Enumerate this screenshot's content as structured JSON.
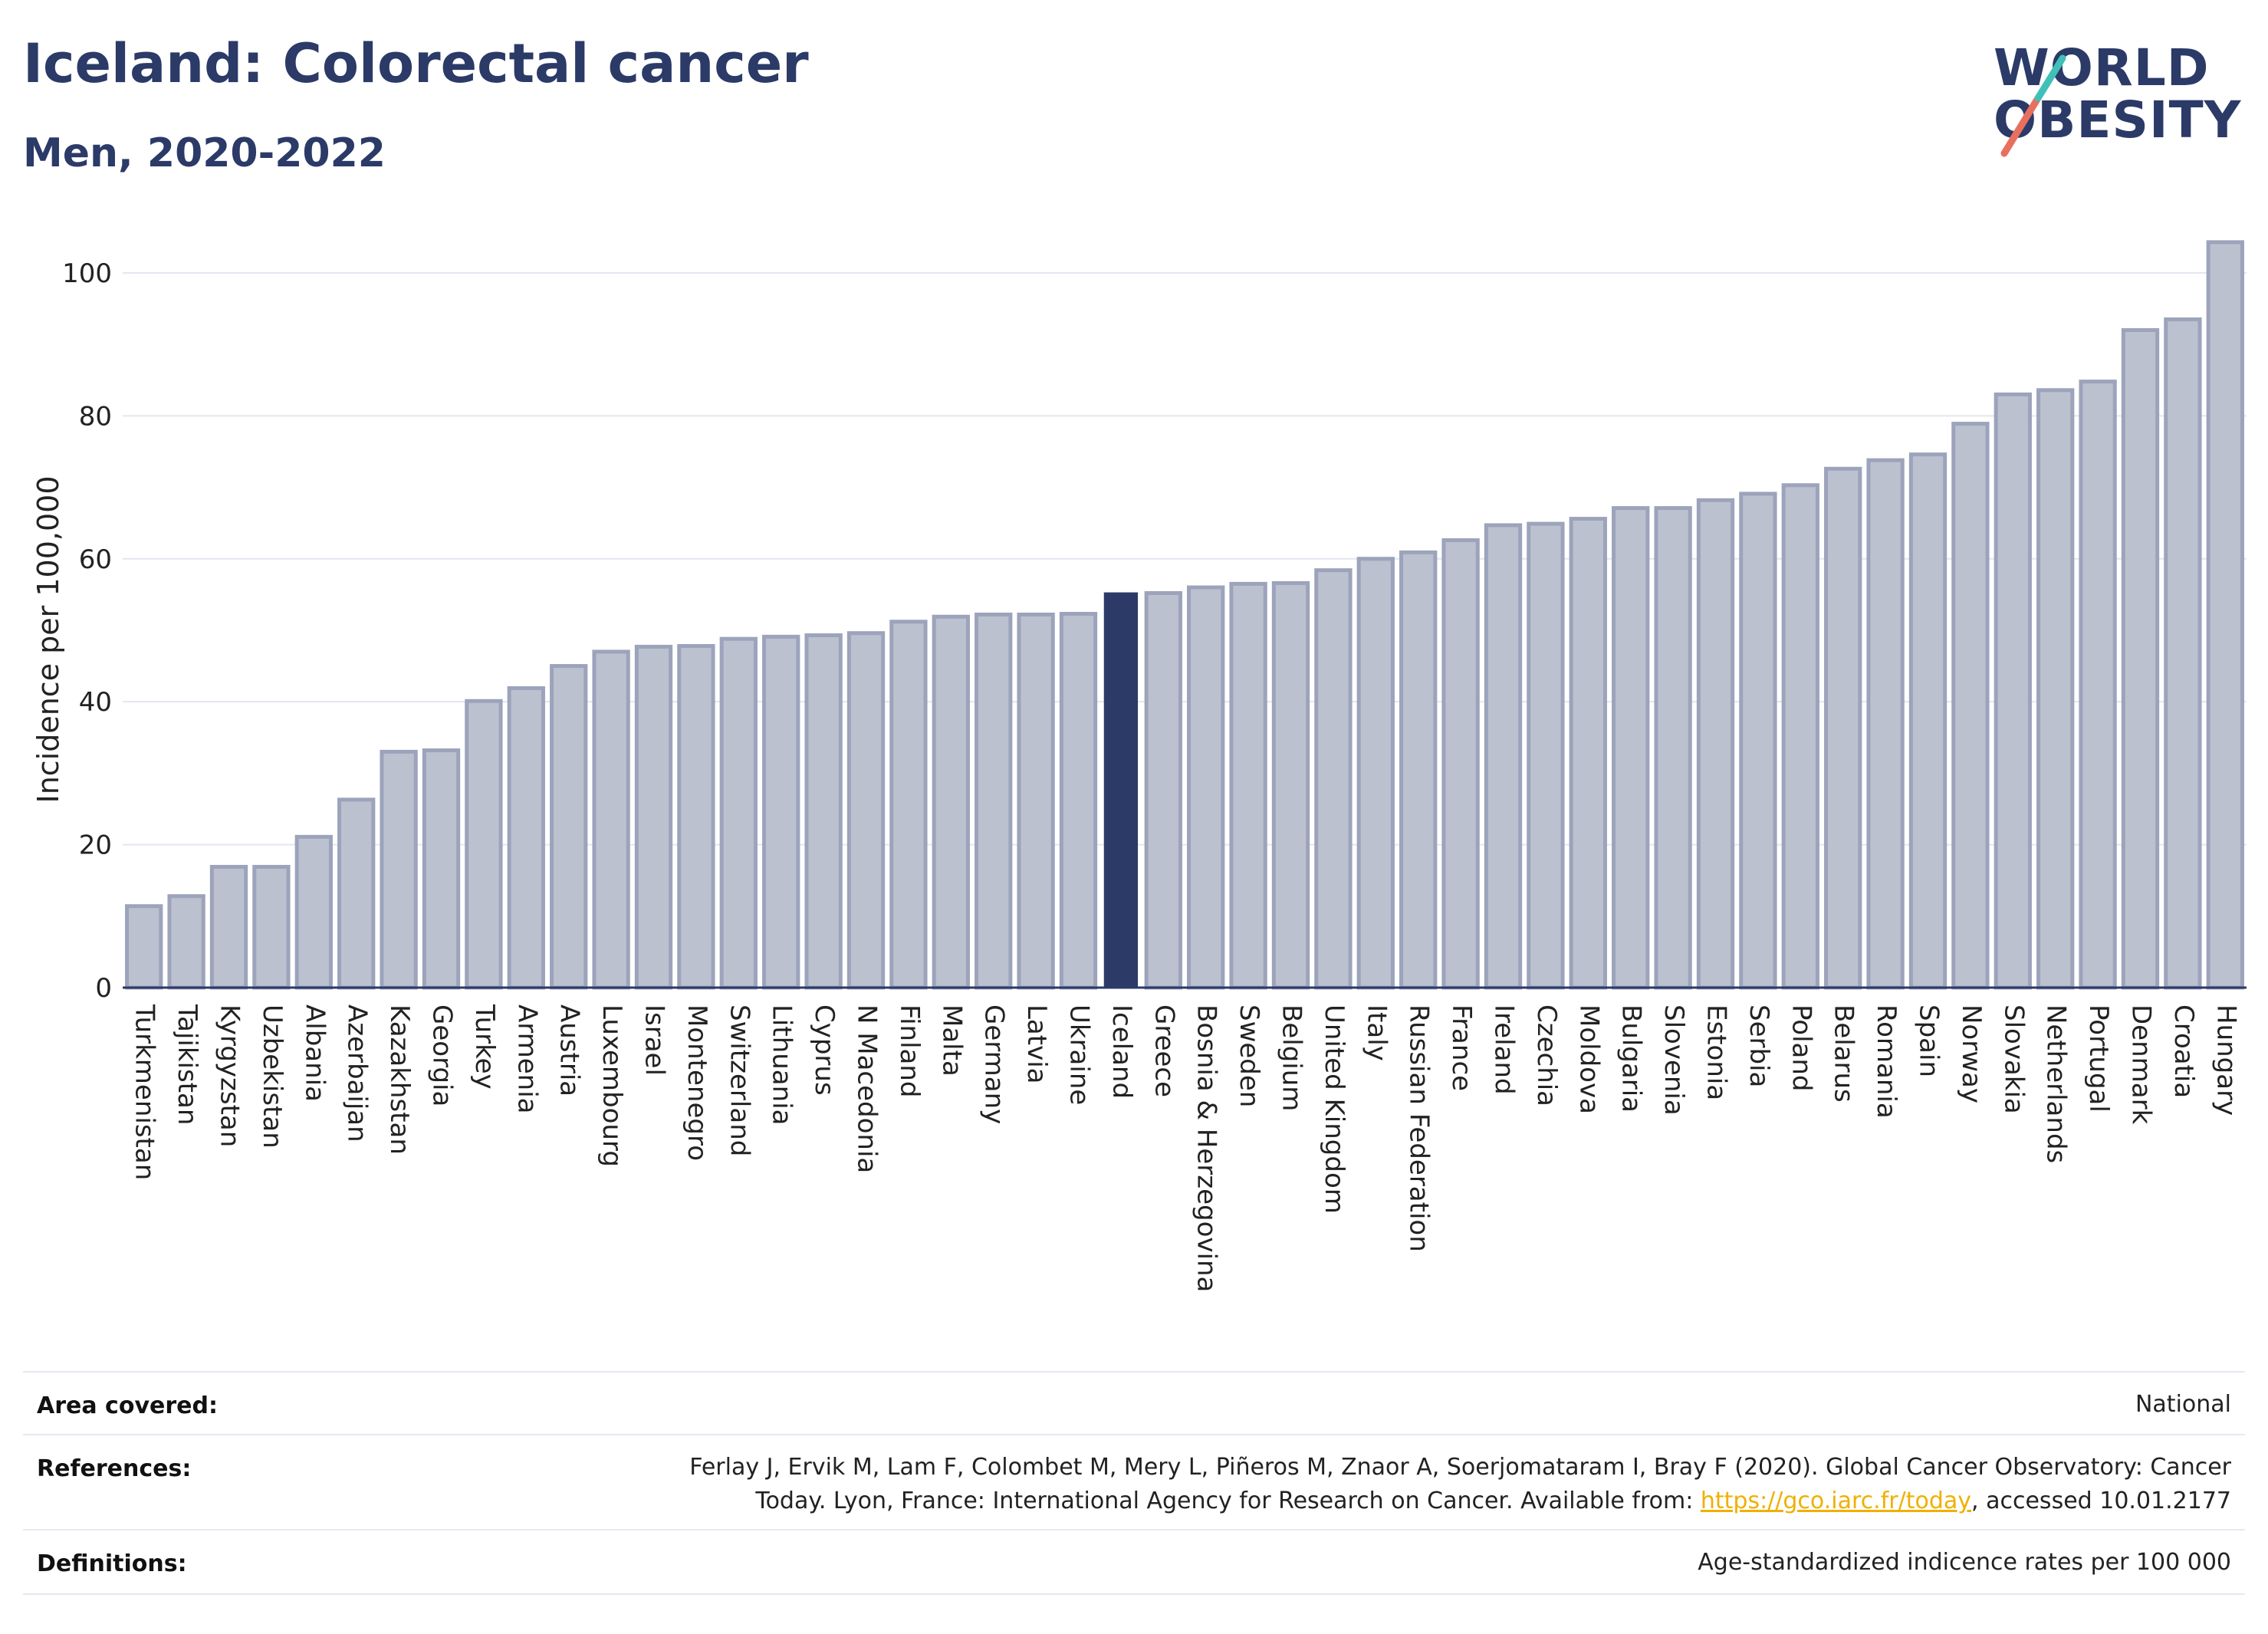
{
  "header": {
    "title": "Iceland: Colorectal cancer",
    "subtitle": "Men, 2020-2022"
  },
  "logo": {
    "line1": "WORLD",
    "line2": "OBESITY"
  },
  "chart_data": {
    "type": "bar",
    "title": "Iceland: Colorectal cancer",
    "subtitle": "Men, 2020-2022",
    "ylabel": "Incidence per 100,000",
    "xlabel": "",
    "ylim": [
      0,
      106
    ],
    "yticks": [
      0,
      20,
      40,
      60,
      80,
      100
    ],
    "grid": true,
    "highlight": "Iceland",
    "colors": {
      "bar": "#bcc1d0",
      "bar_edge": "#9ca3bb",
      "highlight": "#2b3a67",
      "grid": "#e3e6ef"
    },
    "categories": [
      "Turkmenistan",
      "Tajikistan",
      "Kyrgyzstan",
      "Uzbekistan",
      "Albania",
      "Azerbaijan",
      "Kazakhstan",
      "Georgia",
      "Turkey",
      "Armenia",
      "Austria",
      "Luxembourg",
      "Israel",
      "Montenegro",
      "Switzerland",
      "Lithuania",
      "Cyprus",
      "N Macedonia",
      "Finland",
      "Malta",
      "Germany",
      "Latvia",
      "Ukraine",
      "Iceland",
      "Greece",
      "Bosnia & Herzegovina",
      "Sweden",
      "Belgium",
      "United Kingdom",
      "Italy",
      "Russian Federation",
      "France",
      "Ireland",
      "Czechia",
      "Moldova",
      "Bulgaria",
      "Slovenia",
      "Estonia",
      "Serbia",
      "Poland",
      "Belarus",
      "Romania",
      "Spain",
      "Norway",
      "Slovakia",
      "Netherlands",
      "Portugal",
      "Denmark",
      "Croatia",
      "Hungary"
    ],
    "values": [
      11.4,
      12.8,
      16.9,
      16.9,
      21.1,
      26.3,
      33.0,
      33.2,
      40.1,
      41.9,
      45.0,
      47.0,
      47.7,
      47.8,
      48.8,
      49.1,
      49.3,
      49.6,
      51.2,
      51.9,
      52.2,
      52.2,
      52.3,
      55.3,
      55.2,
      56.0,
      56.5,
      56.6,
      58.4,
      60.0,
      60.9,
      62.6,
      64.7,
      64.9,
      65.6,
      67.1,
      67.1,
      68.2,
      69.1,
      70.3,
      72.6,
      73.8,
      74.6,
      78.9,
      83.0,
      83.6,
      84.8,
      92.0,
      93.5,
      104.3
    ]
  },
  "info": {
    "area_label": "Area covered:",
    "area_value": "National",
    "references_label": "References:",
    "references_line1": "Ferlay J, Ervik M, Lam F, Colombet M, Mery L, Piñeros M, Znaor A, Soerjomataram I, Bray F (2020). Global Cancer Observatory: Cancer",
    "references_line2_pre": "Today. Lyon, France: International Agency for Research on Cancer. Available from: ",
    "references_link": "https://gco.iarc.fr/today",
    "references_line2_post": ", accessed 10.01.2177",
    "definitions_label": "Definitions:",
    "definitions_value": "Age-standardized indicence rates per 100 000"
  }
}
